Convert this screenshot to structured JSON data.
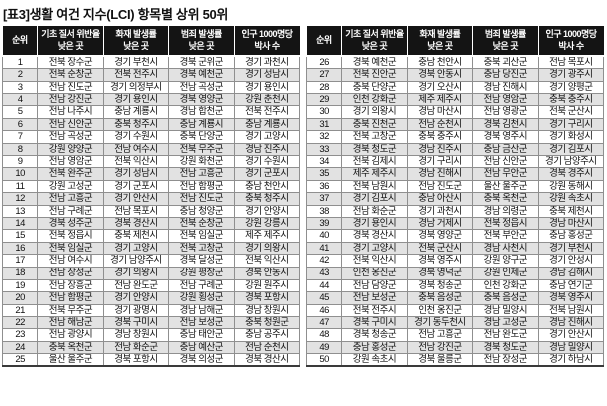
{
  "title": "[표3]생활 여건 지수(LCI) 항목별 상위 50위",
  "headers": [
    "순위",
    "기초 질서 위반율\n낮은 곳",
    "화재 발생률\n낮은 곳",
    "범죄 발생률\n낮은 곳",
    "인구 1000명당\n박사 수"
  ],
  "colors": {
    "header_bg": "#141414",
    "header_fg": "#ffffff",
    "alt_row_bg": "#e2e2e2",
    "border": "#8f8f8f",
    "text": "#101010"
  },
  "left_table": {
    "rows": [
      [
        "1",
        "전북 장수군",
        "경기 부천시",
        "경북 군위군",
        "경기 과천시"
      ],
      [
        "2",
        "전북 순창군",
        "전북 전주시",
        "경북 예천군",
        "경기 성남시"
      ],
      [
        "3",
        "전남 진도군",
        "경기 의정부시",
        "전남 곡성군",
        "경기 용인시"
      ],
      [
        "4",
        "전남 강진군",
        "경기 용인시",
        "경북 영양군",
        "강원 춘천시"
      ],
      [
        "5",
        "전남 나주시",
        "충남 계룡시",
        "경남 합천군",
        "전북 전주시"
      ],
      [
        "6",
        "전남 신안군",
        "충북 청주시",
        "충남 계룡시",
        "충남 계룡시"
      ],
      [
        "7",
        "전남 곡성군",
        "경기 수원시",
        "충북 단양군",
        "경기 고양시"
      ],
      [
        "8",
        "강원 양양군",
        "전남 여수시",
        "전북 무주군",
        "경남 진주시"
      ],
      [
        "9",
        "전남 영암군",
        "전북 익산시",
        "강원 화천군",
        "경기 수원시"
      ],
      [
        "10",
        "전북 완주군",
        "경기 성남시",
        "전남 고흥군",
        "경기 군포시"
      ],
      [
        "11",
        "강원 고성군",
        "경기 군포시",
        "전남 함평군",
        "충남 천안시"
      ],
      [
        "12",
        "전남 고흥군",
        "경기 안산시",
        "전남 진도군",
        "충북 청주시"
      ],
      [
        "13",
        "전남 구례군",
        "전남 목포시",
        "충남 청양군",
        "경기 안양시"
      ],
      [
        "14",
        "경북 성주군",
        "경북 경산시",
        "전북 순창군",
        "강원 강릉시"
      ],
      [
        "15",
        "전북 정읍시",
        "충북 제천시",
        "전북 임실군",
        "제주 제주시"
      ],
      [
        "16",
        "전북 임실군",
        "경기 고양시",
        "전북 고창군",
        "경기 의왕시"
      ],
      [
        "17",
        "전남 여수시",
        "경기 남양주시",
        "경북 달성군",
        "전북 익산시"
      ],
      [
        "18",
        "전남 장성군",
        "경기 의왕시",
        "강원 평창군",
        "경북 안동시"
      ],
      [
        "19",
        "전남 장흥군",
        "전남 완도군",
        "전남 구례군",
        "강원 원주시"
      ],
      [
        "20",
        "전남 함평군",
        "경기 안양시",
        "강원 횡성군",
        "경북 포항시"
      ],
      [
        "21",
        "전북 무주군",
        "경기 광명시",
        "경남 남해군",
        "경남 창원시"
      ],
      [
        "22",
        "전남 해남군",
        "경북 구미시",
        "전남 보성군",
        "충북 청원군"
      ],
      [
        "23",
        "전남 광양시",
        "경남 창원시",
        "충남 태안군",
        "충남 공주시"
      ],
      [
        "24",
        "충북 옥천군",
        "전남 화순군",
        "충남 예산군",
        "전남 순천시"
      ],
      [
        "25",
        "울산 울주군",
        "경북 포항시",
        "경북 의성군",
        "경북 경산시"
      ]
    ]
  },
  "right_table": {
    "rows": [
      [
        "26",
        "경북 예천군",
        "충남 천안시",
        "충북 괴산군",
        "전남 목포시"
      ],
      [
        "27",
        "전북 진안군",
        "경북 안동시",
        "충남 당진군",
        "경기 광주시"
      ],
      [
        "28",
        "충북 단양군",
        "경기 오산시",
        "경남 진해시",
        "경기 양평군"
      ],
      [
        "29",
        "인천 강화군",
        "제주 제주시",
        "전남 영암군",
        "충북 충주시"
      ],
      [
        "30",
        "경기 의왕시",
        "경남 마산시",
        "전남 영광군",
        "전북 군산시"
      ],
      [
        "31",
        "충북 진천군",
        "전남 순천시",
        "경북 김천시",
        "경기 구리시"
      ],
      [
        "32",
        "전북 고창군",
        "충북 충주시",
        "경북 영주시",
        "경기 화성시"
      ],
      [
        "33",
        "경북 청도군",
        "경남 진주시",
        "충남 금산군",
        "경기 김포시"
      ],
      [
        "34",
        "전북 김제시",
        "경기 구리시",
        "전남 신안군",
        "경기 남양주시"
      ],
      [
        "35",
        "제주 제주시",
        "경남 진해시",
        "전남 무안군",
        "경북 경주시"
      ],
      [
        "36",
        "전북 남원시",
        "전남 진도군",
        "울산 울주군",
        "강원 동해시"
      ],
      [
        "37",
        "경기 김포시",
        "충남 아산시",
        "충북 옥천군",
        "강원 속초시"
      ],
      [
        "38",
        "전남 화순군",
        "경기 과천시",
        "경남 의령군",
        "충북 제천시"
      ],
      [
        "39",
        "경기 용인시",
        "경남 거제시",
        "전북 정읍시",
        "경남 마산시"
      ],
      [
        "40",
        "경북 경산시",
        "경북 영양군",
        "전북 부안군",
        "충남 홍성군"
      ],
      [
        "41",
        "경기 고양시",
        "전북 군산시",
        "경남 사천시",
        "경기 부천시"
      ],
      [
        "42",
        "전북 익산시",
        "경북 영주시",
        "강원 양구군",
        "경기 안성시"
      ],
      [
        "43",
        "인천 옹진군",
        "경북 영덕군",
        "강원 인제군",
        "경남 김해시"
      ],
      [
        "44",
        "전남 담양군",
        "경북 청송군",
        "인천 강화군",
        "충남 연기군"
      ],
      [
        "45",
        "전남 보성군",
        "충북 음성군",
        "충북 음성군",
        "경북 영주시"
      ],
      [
        "46",
        "전북 전주시",
        "인천 옹진군",
        "경남 밀양시",
        "전북 남원시"
      ],
      [
        "47",
        "경북 구미시",
        "경기 동두천시",
        "경남 고성군",
        "경남 진해시"
      ],
      [
        "48",
        "경북 청송군",
        "전남 고흥군",
        "전남 완도군",
        "경기 안산시"
      ],
      [
        "49",
        "충남 홍성군",
        "전남 강진군",
        "경북 청도군",
        "경남 밀양시"
      ],
      [
        "50",
        "강원 속초시",
        "경북 울릉군",
        "전남 장성군",
        "경기 하남시"
      ]
    ]
  }
}
